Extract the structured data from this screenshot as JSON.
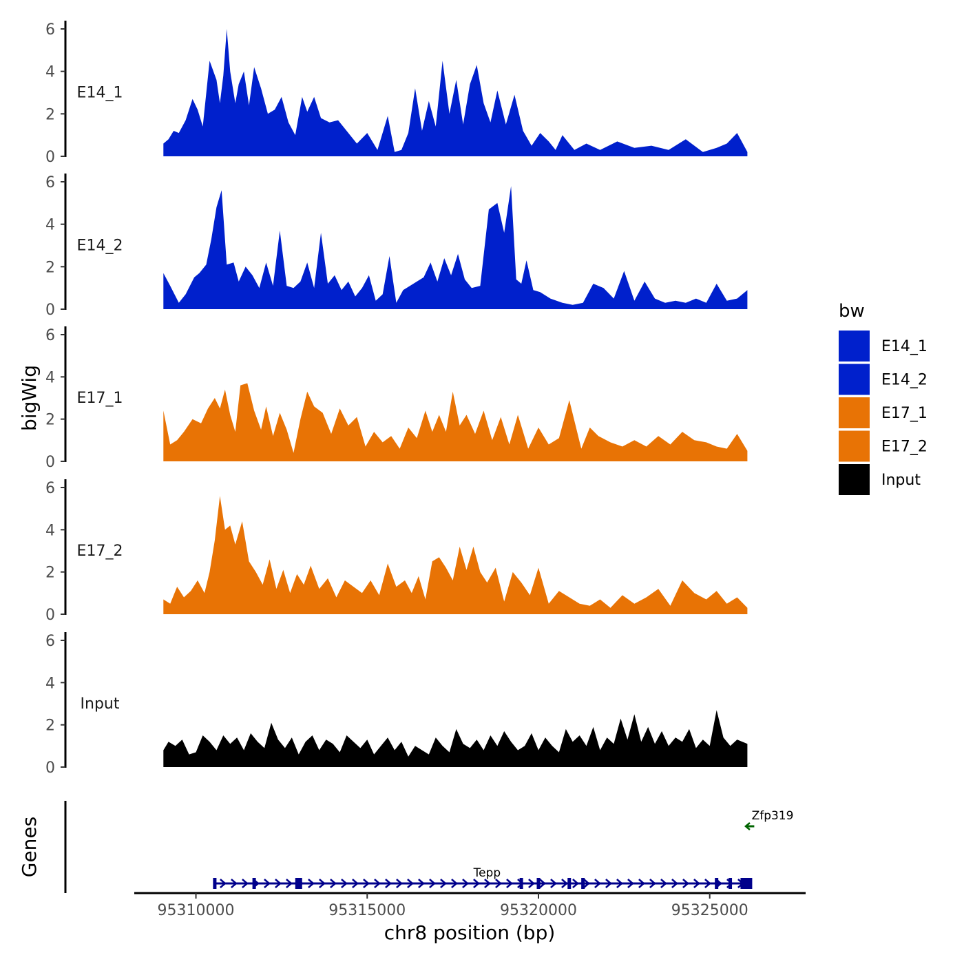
{
  "chart_data": {
    "type": "area",
    "chromosome": "chr8",
    "ylabel": "bigWig",
    "xlabel": "chr8 position (bp)",
    "genes_label": "Genes",
    "legend": {
      "title": "bw",
      "position": "right",
      "entries": [
        {
          "name": "E14_1",
          "color": "#0020cc"
        },
        {
          "name": "E14_2",
          "color": "#0020cc"
        },
        {
          "name": "E17_1",
          "color": "#e87305"
        },
        {
          "name": "E17_2",
          "color": "#e87305"
        },
        {
          "name": "Input",
          "color": "#000000"
        }
      ]
    },
    "xlim": [
      95308200,
      95327800
    ],
    "xticks": [
      95310000,
      95315000,
      95320000,
      95325000
    ],
    "xtick_labels": [
      "95310000",
      "95315000",
      "95320000",
      "95325000"
    ],
    "ylim": [
      0,
      6.2
    ],
    "yticks": [
      0,
      2,
      4,
      6
    ],
    "ytick_labels": [
      "0",
      "2",
      "4",
      "6"
    ],
    "tracks": [
      {
        "name": "E14_1",
        "color": "#0020cc",
        "x": [
          95309050,
          95309200,
          95309350,
          95309500,
          95309700,
          95309900,
          95310050,
          95310200,
          95310400,
          95310600,
          95310700,
          95310800,
          95310900,
          95311000,
          95311150,
          95311250,
          95311400,
          95311550,
          95311700,
          95311900,
          95312100,
          95312300,
          95312500,
          95312700,
          95312900,
          95313100,
          95313250,
          95313450,
          95313650,
          95313900,
          95314150,
          95314400,
          95314700,
          95315000,
          95315300,
          95315600,
          95315800,
          95316000,
          95316200,
          95316400,
          95316600,
          95316800,
          95317000,
          95317200,
          95317400,
          95317600,
          95317800,
          95318000,
          95318200,
          95318400,
          95318600,
          95318800,
          95319050,
          95319300,
          95319550,
          95319800,
          95320050,
          95320300,
          95320500,
          95320700,
          95321050,
          95321400,
          95321800,
          95322300,
          95322800,
          95323300,
          95323800,
          95324300,
          95324800,
          95325200,
          95325500,
          95325800,
          95326100
        ],
        "y": [
          0.6,
          0.8,
          1.2,
          1.1,
          1.7,
          2.7,
          2.2,
          1.4,
          4.5,
          3.6,
          2.5,
          3.8,
          6.0,
          4.0,
          2.5,
          3.4,
          4.0,
          2.4,
          4.2,
          3.2,
          2.0,
          2.2,
          2.8,
          1.6,
          1.0,
          2.8,
          2.1,
          2.8,
          1.8,
          1.6,
          1.7,
          1.2,
          0.6,
          1.1,
          0.3,
          1.9,
          0.2,
          0.3,
          1.1,
          3.2,
          1.2,
          2.6,
          1.4,
          4.5,
          2.0,
          3.6,
          1.5,
          3.4,
          4.3,
          2.5,
          1.6,
          3.1,
          1.5,
          2.9,
          1.2,
          0.5,
          1.1,
          0.7,
          0.3,
          1.0,
          0.3,
          0.6,
          0.3,
          0.7,
          0.4,
          0.5,
          0.3,
          0.8,
          0.2,
          0.4,
          0.6,
          1.1,
          0.2
        ]
      },
      {
        "name": "E14_2",
        "color": "#0020cc",
        "x": [
          95309050,
          95309250,
          95309500,
          95309700,
          95309950,
          95310100,
          95310300,
          95310450,
          95310600,
          95310750,
          95310900,
          95311100,
          95311250,
          95311450,
          95311650,
          95311850,
          95312050,
          95312250,
          95312450,
          95312650,
          95312850,
          95313050,
          95313250,
          95313450,
          95313650,
          95313850,
          95314050,
          95314250,
          95314450,
          95314650,
          95314850,
          95315050,
          95315250,
          95315450,
          95315650,
          95315850,
          95316050,
          95316250,
          95316450,
          95316650,
          95316850,
          95317050,
          95317250,
          95317450,
          95317650,
          95317850,
          95318050,
          95318300,
          95318550,
          95318800,
          95319000,
          95319200,
          95319350,
          95319500,
          95319650,
          95319850,
          95320050,
          95320350,
          95320700,
          95321000,
          95321300,
          95321600,
          95321900,
          95322200,
          95322500,
          95322800,
          95323100,
          95323400,
          95323700,
          95324000,
          95324300,
          95324600,
          95324900,
          95325200,
          95325500,
          95325800,
          95326100
        ],
        "y": [
          1.7,
          1.1,
          0.3,
          0.7,
          1.5,
          1.7,
          2.1,
          3.3,
          4.8,
          5.6,
          2.1,
          2.2,
          1.3,
          2.0,
          1.6,
          1.0,
          2.2,
          1.1,
          3.7,
          1.1,
          1.0,
          1.3,
          2.2,
          1.0,
          3.6,
          1.2,
          1.6,
          0.9,
          1.3,
          0.6,
          1.0,
          1.6,
          0.4,
          0.7,
          2.5,
          0.3,
          0.9,
          1.1,
          1.3,
          1.5,
          2.2,
          1.3,
          2.4,
          1.6,
          2.6,
          1.4,
          1.0,
          1.1,
          4.7,
          5.0,
          3.6,
          5.8,
          1.4,
          1.2,
          2.3,
          0.9,
          0.8,
          0.5,
          0.3,
          0.2,
          0.3,
          1.2,
          1.0,
          0.5,
          1.8,
          0.4,
          1.3,
          0.5,
          0.3,
          0.4,
          0.3,
          0.5,
          0.3,
          1.2,
          0.4,
          0.5,
          0.9
        ]
      },
      {
        "name": "E17_1",
        "color": "#e87305",
        "x": [
          95309050,
          95309250,
          95309450,
          95309650,
          95309900,
          95310150,
          95310350,
          95310550,
          95310700,
          95310850,
          95311000,
          95311150,
          95311300,
          95311500,
          95311700,
          95311900,
          95312050,
          95312250,
          95312450,
          95312650,
          95312850,
          95313050,
          95313250,
          95313450,
          95313700,
          95313950,
          95314200,
          95314450,
          95314700,
          95314950,
          95315200,
          95315450,
          95315700,
          95315950,
          95316200,
          95316450,
          95316700,
          95316900,
          95317100,
          95317300,
          95317500,
          95317700,
          95317900,
          95318150,
          95318400,
          95318650,
          95318900,
          95319150,
          95319400,
          95319700,
          95320000,
          95320300,
          95320600,
          95320900,
          95321250,
          95321500,
          95321750,
          95322100,
          95322450,
          95322800,
          95323150,
          95323500,
          95323850,
          95324200,
          95324550,
          95324900,
          95325200,
          95325500,
          95325800,
          95326100
        ],
        "y": [
          2.4,
          0.8,
          1.0,
          1.4,
          2.0,
          1.8,
          2.5,
          3.0,
          2.5,
          3.4,
          2.2,
          1.4,
          3.6,
          3.7,
          2.4,
          1.5,
          2.6,
          1.2,
          2.3,
          1.5,
          0.4,
          2.0,
          3.3,
          2.6,
          2.3,
          1.3,
          2.5,
          1.7,
          2.1,
          0.7,
          1.4,
          0.9,
          1.2,
          0.6,
          1.6,
          1.1,
          2.4,
          1.4,
          2.2,
          1.4,
          3.3,
          1.7,
          2.2,
          1.3,
          2.4,
          1.0,
          2.1,
          0.8,
          2.2,
          0.6,
          1.6,
          0.8,
          1.1,
          2.9,
          0.6,
          1.6,
          1.2,
          0.9,
          0.7,
          1.0,
          0.7,
          1.2,
          0.8,
          1.4,
          1.0,
          0.9,
          0.7,
          0.6,
          1.3,
          0.5
        ]
      },
      {
        "name": "E17_2",
        "color": "#e87305",
        "x": [
          95309050,
          95309250,
          95309450,
          95309650,
          95309850,
          95310050,
          95310250,
          95310400,
          95310550,
          95310700,
          95310850,
          95311000,
          95311150,
          95311350,
          95311550,
          95311750,
          95311950,
          95312150,
          95312350,
          95312550,
          95312750,
          95312950,
          95313150,
          95313350,
          95313600,
          95313850,
          95314100,
          95314350,
          95314600,
          95314850,
          95315100,
          95315350,
          95315600,
          95315850,
          95316100,
          95316300,
          95316500,
          95316700,
          95316900,
          95317100,
          95317300,
          95317500,
          95317700,
          95317900,
          95318100,
          95318300,
          95318500,
          95318750,
          95319000,
          95319250,
          95319500,
          95319750,
          95320000,
          95320300,
          95320600,
          95320900,
          95321200,
          95321500,
          95321800,
          95322100,
          95322450,
          95322800,
          95323150,
          95323500,
          95323850,
          95324200,
          95324550,
          95324900,
          95325200,
          95325500,
          95325800,
          95326100
        ],
        "y": [
          0.7,
          0.5,
          1.3,
          0.8,
          1.1,
          1.6,
          1.0,
          2.0,
          3.5,
          5.6,
          4.0,
          4.2,
          3.3,
          4.4,
          2.5,
          2.0,
          1.4,
          2.6,
          1.2,
          2.1,
          1.0,
          1.9,
          1.4,
          2.3,
          1.2,
          1.7,
          0.8,
          1.6,
          1.3,
          1.0,
          1.6,
          0.9,
          2.4,
          1.3,
          1.6,
          1.0,
          1.8,
          0.7,
          2.5,
          2.7,
          2.2,
          1.6,
          3.2,
          2.1,
          3.2,
          2.0,
          1.5,
          2.2,
          0.6,
          2.0,
          1.5,
          0.9,
          2.2,
          0.5,
          1.1,
          0.8,
          0.5,
          0.4,
          0.7,
          0.3,
          0.9,
          0.5,
          0.8,
          1.2,
          0.4,
          1.6,
          1.0,
          0.7,
          1.1,
          0.5,
          0.8,
          0.3
        ]
      },
      {
        "name": "Input",
        "color": "#000000",
        "x": [
          95309050,
          95309200,
          95309400,
          95309600,
          95309800,
          95310000,
          95310200,
          95310400,
          95310600,
          95310800,
          95311000,
          95311200,
          95311400,
          95311600,
          95311800,
          95312000,
          95312200,
          95312400,
          95312600,
          95312800,
          95313000,
          95313200,
          95313400,
          95313600,
          95313800,
          95314000,
          95314200,
          95314400,
          95314600,
          95314800,
          95315000,
          95315200,
          95315400,
          95315600,
          95315800,
          95316000,
          95316200,
          95316400,
          95316600,
          95316800,
          95317000,
          95317200,
          95317400,
          95317600,
          95317800,
          95318000,
          95318200,
          95318400,
          95318600,
          95318800,
          95319000,
          95319200,
          95319400,
          95319600,
          95319800,
          95320000,
          95320200,
          95320400,
          95320600,
          95320800,
          95321000,
          95321200,
          95321400,
          95321600,
          95321800,
          95322000,
          95322200,
          95322400,
          95322600,
          95322800,
          95323000,
          95323200,
          95323400,
          95323600,
          95323800,
          95324000,
          95324200,
          95324400,
          95324600,
          95324800,
          95325000,
          95325200,
          95325400,
          95325600,
          95325800,
          95326100
        ],
        "y": [
          0.8,
          1.2,
          1.0,
          1.3,
          0.6,
          0.7,
          1.5,
          1.2,
          0.8,
          1.5,
          1.1,
          1.4,
          0.8,
          1.6,
          1.2,
          0.9,
          2.1,
          1.3,
          0.9,
          1.4,
          0.6,
          1.2,
          1.5,
          0.8,
          1.3,
          1.1,
          0.7,
          1.5,
          1.2,
          0.9,
          1.3,
          0.6,
          1.0,
          1.4,
          0.8,
          1.2,
          0.5,
          1.0,
          0.8,
          0.6,
          1.4,
          1.0,
          0.7,
          1.8,
          1.1,
          0.9,
          1.3,
          0.8,
          1.5,
          1.0,
          1.7,
          1.2,
          0.8,
          1.0,
          1.6,
          0.8,
          1.4,
          1.0,
          0.7,
          1.8,
          1.2,
          1.5,
          1.0,
          1.9,
          0.8,
          1.4,
          1.1,
          2.3,
          1.3,
          2.5,
          1.2,
          1.9,
          1.1,
          1.7,
          1.0,
          1.4,
          1.2,
          1.8,
          0.9,
          1.3,
          1.0,
          2.7,
          1.4,
          1.0,
          1.3,
          1.1
        ]
      }
    ],
    "genes": [
      {
        "name": "Tepp",
        "strand": "+",
        "color": "#00008b",
        "start": 95310550,
        "end": 95326200,
        "exons": [
          95310550,
          95311700,
          95313000,
          95319500,
          95320000,
          95320900,
          95321300,
          95325200,
          95325600,
          95326000
        ]
      },
      {
        "name": "Zfp319",
        "strand": "-",
        "color": "#006400",
        "start": 95326050,
        "end": 95326300,
        "exons": []
      }
    ]
  }
}
